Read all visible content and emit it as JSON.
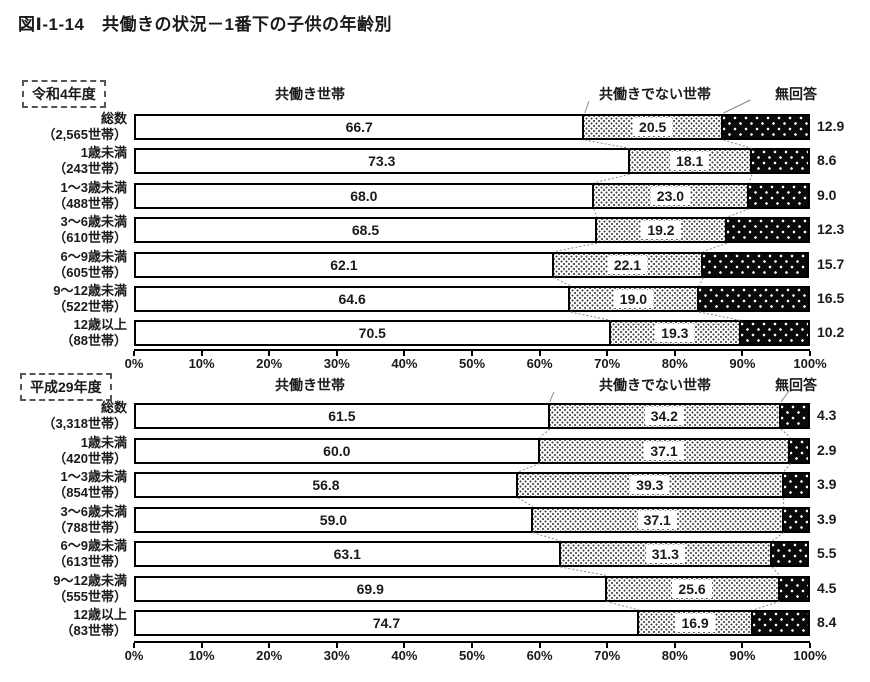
{
  "title": "図Ⅰ-1-14　共働きの状況－1番下の子供の年齢別",
  "colors": {
    "bar_border": "#000000",
    "dual_income_fill": "#ffffff",
    "not_dual_income_dots": "#444444",
    "no_answer_fill": "#0a0a0a",
    "connector_line": "#888888",
    "text": "#1a1a1a"
  },
  "chart_data": [
    {
      "type": "bar",
      "orientation": "horizontal",
      "stacked": true,
      "period_label": "令和4年度",
      "legend": [
        "共働き世帯",
        "共働きでない世帯",
        "無回答"
      ],
      "legend_position": "top",
      "categories": [
        "総数",
        "1歳未満",
        "1～3歳未満",
        "3～6歳未満",
        "6～9歳未満",
        "9～12歳未満",
        "12歳以上"
      ],
      "category_counts": [
        "（2,565世帯）",
        "（243世帯）",
        "（488世帯）",
        "（610世帯）",
        "（605世帯）",
        "（522世帯）",
        "（88世帯）"
      ],
      "series": [
        {
          "name": "共働き世帯",
          "values": [
            66.7,
            73.3,
            68.0,
            68.5,
            62.1,
            64.6,
            70.5
          ]
        },
        {
          "name": "共働きでない世帯",
          "values": [
            20.5,
            18.1,
            23.0,
            19.2,
            22.1,
            19.0,
            19.3
          ]
        },
        {
          "name": "無回答",
          "values": [
            12.9,
            8.6,
            9.0,
            12.3,
            15.7,
            16.5,
            10.2
          ]
        }
      ],
      "xlim": [
        0,
        100
      ],
      "x_ticks": [
        "0%",
        "10%",
        "20%",
        "30%",
        "40%",
        "50%",
        "60%",
        "70%",
        "80%",
        "90%",
        "100%"
      ],
      "grid": false
    },
    {
      "type": "bar",
      "orientation": "horizontal",
      "stacked": true,
      "period_label": "平成29年度",
      "legend": [
        "共働き世帯",
        "共働きでない世帯",
        "無回答"
      ],
      "legend_position": "top",
      "categories": [
        "総数",
        "1歳未満",
        "1～3歳未満",
        "3～6歳未満",
        "6～9歳未満",
        "9～12歳未満",
        "12歳以上"
      ],
      "category_counts": [
        "（3,318世帯）",
        "（420世帯）",
        "（854世帯）",
        "（788世帯）",
        "（613世帯）",
        "（555世帯）",
        "（83世帯）"
      ],
      "series": [
        {
          "name": "共働き世帯",
          "values": [
            61.5,
            60.0,
            56.8,
            59.0,
            63.1,
            69.9,
            74.7
          ]
        },
        {
          "name": "共働きでない世帯",
          "values": [
            34.2,
            37.1,
            39.3,
            37.1,
            31.3,
            25.6,
            16.9
          ]
        },
        {
          "name": "無回答",
          "values": [
            4.3,
            2.9,
            3.9,
            3.9,
            5.5,
            4.5,
            8.4
          ]
        }
      ],
      "xlim": [
        0,
        100
      ],
      "x_ticks": [
        "0%",
        "10%",
        "20%",
        "30%",
        "40%",
        "50%",
        "60%",
        "70%",
        "80%",
        "90%",
        "100%"
      ],
      "grid": false
    }
  ]
}
